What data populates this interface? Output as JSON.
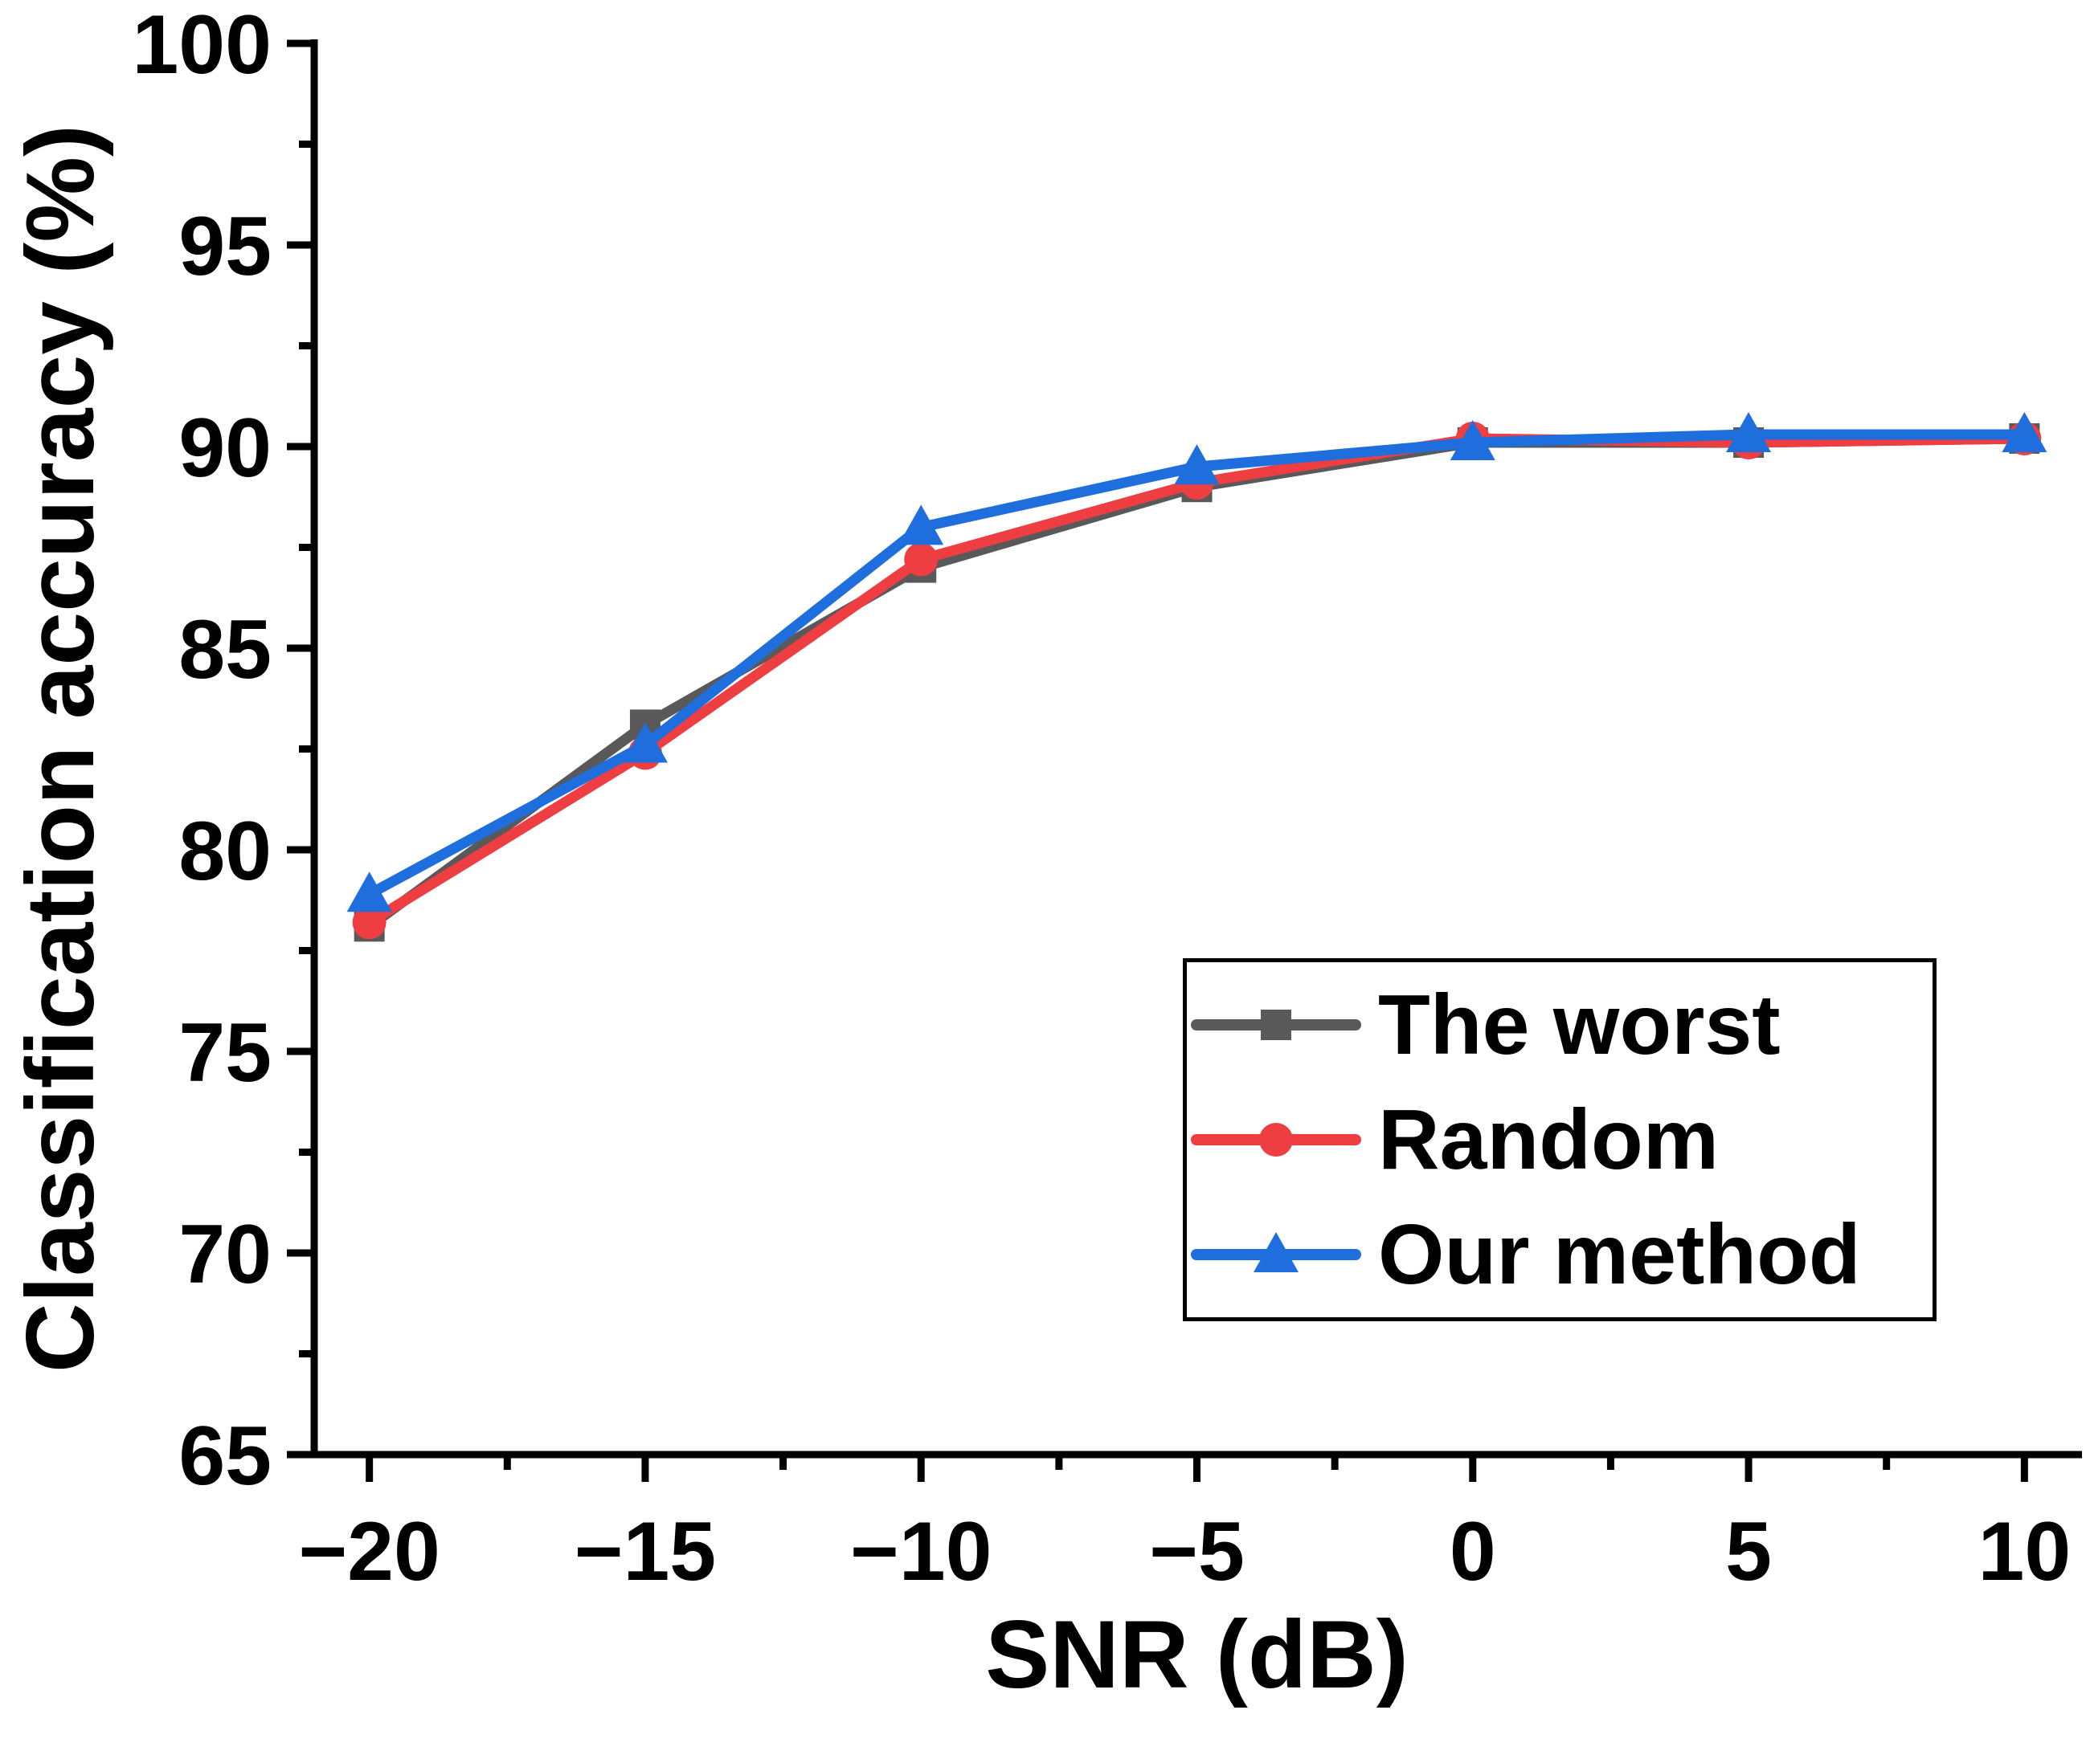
{
  "figure": {
    "background": "#ffffff",
    "text_color": "#000000"
  },
  "chart_data": {
    "type": "line",
    "title": "",
    "xlabel": "SNR (dB)",
    "ylabel": "Classification accuracy (%)",
    "x": [
      -20,
      -15,
      -10,
      -5,
      0,
      5,
      10
    ],
    "x_tick_labels": [
      "−20",
      "−15",
      "−10",
      "−5",
      "0",
      "5",
      "10"
    ],
    "xlim": [
      -21,
      11
    ],
    "ylim": [
      65,
      100
    ],
    "y_ticks_major": [
      65,
      70,
      75,
      80,
      85,
      90,
      95,
      100
    ],
    "y_ticks_minor": [
      67.5,
      72.5,
      77.5,
      82.5,
      87.5,
      92.5,
      97.5
    ],
    "x_ticks_minor": [
      -17.5,
      -12.5,
      -7.5,
      -2.5,
      2.5,
      7.5
    ],
    "grid": false,
    "legend_position": "inside-lower-right",
    "series": [
      {
        "name": "The worst",
        "marker": "square",
        "color": "#595959",
        "values": [
          78.1,
          83.1,
          87.0,
          89.0,
          90.1,
          90.1,
          90.2
        ]
      },
      {
        "name": "Random",
        "marker": "circle",
        "color": "#ee3e41",
        "values": [
          78.2,
          82.4,
          87.2,
          89.1,
          90.2,
          90.1,
          90.2
        ]
      },
      {
        "name": "Our method",
        "marker": "triangle",
        "color": "#1e6edd",
        "values": [
          78.9,
          82.6,
          88.0,
          89.5,
          90.1,
          90.3,
          90.3
        ]
      }
    ]
  }
}
